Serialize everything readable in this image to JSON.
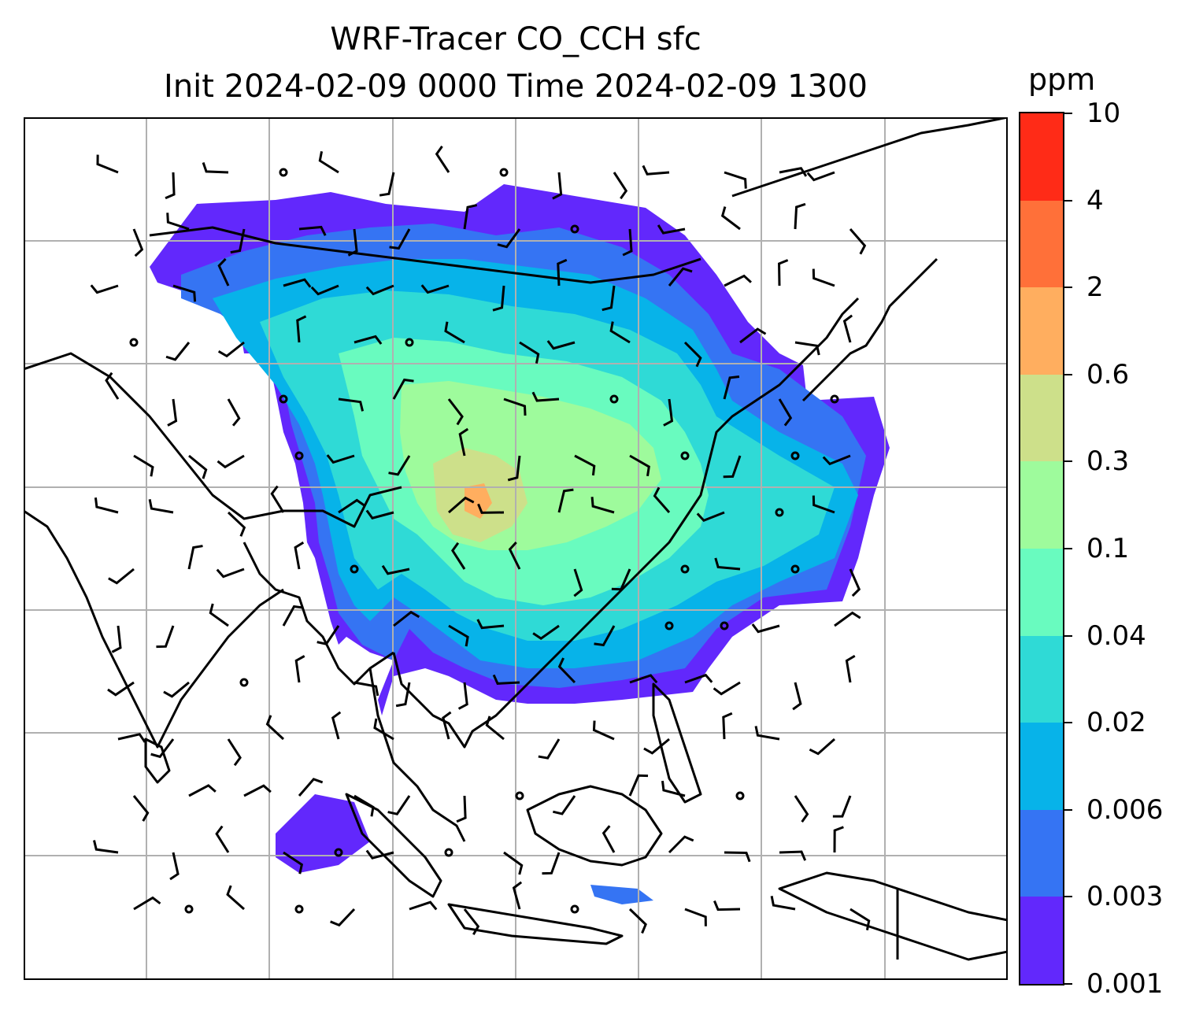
{
  "title": {
    "line1": "WRF-Tracer CO_CCH sfc",
    "line2": "Init 2024-02-09 0000 Time 2024-02-09 1300"
  },
  "colorbar": {
    "unit": "ppm",
    "ticks": [
      "0.001",
      "0.003",
      "0.006",
      "0.02",
      "0.04",
      "0.1",
      "0.3",
      "0.6",
      "2",
      "4",
      "10"
    ],
    "colors": [
      "#6228fc",
      "#3574f3",
      "#07b3e9",
      "#2fdad6",
      "#69fbbf",
      "#9efb9c",
      "#cde08a",
      "#ffae5f",
      "#ff7039",
      "#ff2b17"
    ]
  },
  "map": {
    "gridlines": true,
    "layers": [
      "coastlines",
      "country-borders",
      "tracer-fill",
      "wind-barbs"
    ]
  }
}
